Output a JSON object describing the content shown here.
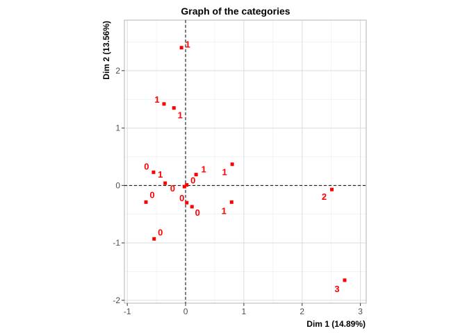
{
  "chart_data": {
    "type": "scatter",
    "title": "Graph of the categories",
    "xlabel": "Dim 1 (14.89%)",
    "ylabel": "Dim 2 (13.56%)",
    "xlim": [
      -1.05,
      3.1
    ],
    "ylim": [
      -2.05,
      2.88
    ],
    "xticks": [
      -1,
      0,
      1,
      2,
      3
    ],
    "yticks": [
      -2,
      -1,
      0,
      1,
      2
    ],
    "grid": true,
    "reference_lines": {
      "x": 0,
      "y": 0
    },
    "point_color": "#ff0000",
    "points": [
      {
        "label": "1",
        "x": -0.07,
        "y": 2.4
      },
      {
        "label": "1",
        "x": -0.37,
        "y": 1.42
      },
      {
        "label": "1",
        "x": -0.2,
        "y": 1.35
      },
      {
        "label": "0",
        "x": -0.55,
        "y": 0.23
      },
      {
        "label": "1",
        "x": -0.35,
        "y": 0.04
      },
      {
        "label": "0",
        "x": -0.02,
        "y": -0.02
      },
      {
        "label": "0",
        "x": 0.02,
        "y": 0.01
      },
      {
        "label": "1",
        "x": 0.18,
        "y": 0.19
      },
      {
        "label": "1",
        "x": 0.8,
        "y": 0.37
      },
      {
        "label": "0",
        "x": -0.68,
        "y": -0.29
      },
      {
        "label": "0",
        "x": 0.02,
        "y": -0.3
      },
      {
        "label": "0",
        "x": 0.11,
        "y": -0.37
      },
      {
        "label": "1",
        "x": 0.79,
        "y": -0.29
      },
      {
        "label": "0",
        "x": -0.54,
        "y": -0.93
      },
      {
        "label": "2",
        "x": 2.51,
        "y": -0.07
      },
      {
        "label": "3",
        "x": 2.73,
        "y": -1.65
      }
    ]
  }
}
